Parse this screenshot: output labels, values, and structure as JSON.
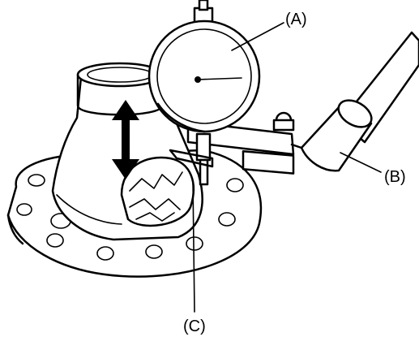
{
  "labels": {
    "dial_indicator": "(A)",
    "magnetic_base": "(B)",
    "measuring_point": "(C)"
  },
  "colors": {
    "line": "#000000",
    "background": "#ffffff"
  },
  "icons": {
    "movement": "double-arrow-vertical"
  }
}
